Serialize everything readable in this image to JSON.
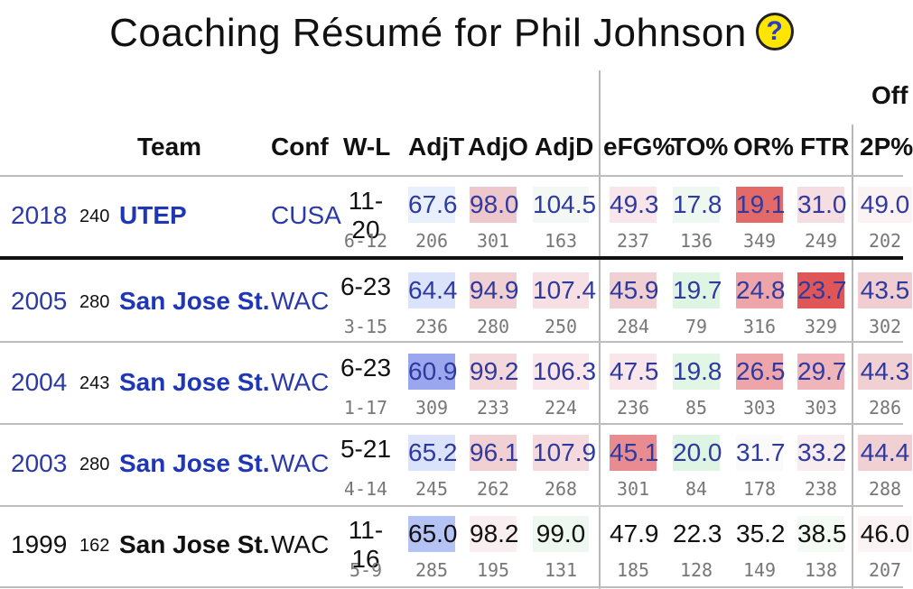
{
  "page": {
    "title": "Coaching Résumé for Phil Johnson",
    "help_icon": "?"
  },
  "group_header": "Off",
  "columns": {
    "team": "Team",
    "conf": "Conf",
    "wl": "W-L",
    "adjt": "AdjT",
    "adjo": "AdjO",
    "adjd": "AdjD",
    "efg": "eFG%",
    "to": "TO%",
    "or": "OR%",
    "ftr": "FTR",
    "two": "2P%"
  },
  "rows": [
    {
      "year": "2018",
      "rank": "240",
      "team": "UTEP",
      "conf": "CUSA",
      "wl": "11-20",
      "conf_wl": "6-12",
      "stats": [
        {
          "v": "67.6",
          "r": "206",
          "bg": "#e9f0fd"
        },
        {
          "v": "98.0",
          "r": "301",
          "bg": "#eec7cc"
        },
        {
          "v": "104.5",
          "r": "163",
          "bg": "#f3f8f5"
        },
        {
          "v": "49.3",
          "r": "237",
          "bg": "#f8e6ea"
        },
        {
          "v": "17.8",
          "r": "136",
          "bg": "#eef8f0"
        },
        {
          "v": "19.1",
          "r": "349",
          "bg": "#e46a6a"
        },
        {
          "v": "31.0",
          "r": "249",
          "bg": "#f6dde1"
        },
        {
          "v": "49.0",
          "r": "202",
          "bg": "#fbf2f3"
        }
      ]
    },
    {
      "year": "2005",
      "rank": "280",
      "team": "San Jose St.",
      "conf": "WAC",
      "wl": "6-23",
      "conf_wl": "3-15",
      "stats": [
        {
          "v": "64.4",
          "r": "236",
          "bg": "#dbe3fb"
        },
        {
          "v": "94.9",
          "r": "280",
          "bg": "#f1d0d4"
        },
        {
          "v": "107.4",
          "r": "250",
          "bg": "#f6e0e3"
        },
        {
          "v": "45.9",
          "r": "284",
          "bg": "#f1d0d4"
        },
        {
          "v": "19.7",
          "r": "79",
          "bg": "#dff5e4"
        },
        {
          "v": "24.8",
          "r": "316",
          "bg": "#eda5aa"
        },
        {
          "v": "23.7",
          "r": "329",
          "bg": "#e05656"
        },
        {
          "v": "43.5",
          "r": "302",
          "bg": "#f0cdd1"
        }
      ]
    },
    {
      "year": "2004",
      "rank": "243",
      "team": "San Jose St.",
      "conf": "WAC",
      "wl": "6-23",
      "conf_wl": "1-17",
      "stats": [
        {
          "v": "60.9",
          "r": "309",
          "bg": "#9aa7ee"
        },
        {
          "v": "99.2",
          "r": "233",
          "bg": "#f3d7db"
        },
        {
          "v": "106.3",
          "r": "224",
          "bg": "#f8e6ea"
        },
        {
          "v": "47.5",
          "r": "236",
          "bg": "#f8e6ea"
        },
        {
          "v": "19.8",
          "r": "85",
          "bg": "#e1f6e5"
        },
        {
          "v": "26.5",
          "r": "303",
          "bg": "#eda5aa"
        },
        {
          "v": "29.7",
          "r": "303",
          "bg": "#efb5ba"
        },
        {
          "v": "44.3",
          "r": "286",
          "bg": "#f1d0d4"
        }
      ]
    },
    {
      "year": "2003",
      "rank": "280",
      "team": "San Jose St.",
      "conf": "WAC",
      "wl": "5-21",
      "conf_wl": "4-14",
      "stats": [
        {
          "v": "65.2",
          "r": "245",
          "bg": "#dbe3fb"
        },
        {
          "v": "96.1",
          "r": "262",
          "bg": "#f1d0d4"
        },
        {
          "v": "107.9",
          "r": "268",
          "bg": "#f4d9dd"
        },
        {
          "v": "45.1",
          "r": "301",
          "bg": "#e98c92"
        },
        {
          "v": "20.0",
          "r": "84",
          "bg": "#dff5e4"
        },
        {
          "v": "31.7",
          "r": "178",
          "bg": "#fafafa"
        },
        {
          "v": "33.2",
          "r": "238",
          "bg": "#f9ecee"
        },
        {
          "v": "44.4",
          "r": "288",
          "bg": "#f1d0d4"
        }
      ]
    },
    {
      "year": "1999",
      "rank": "162",
      "team": "San Jose St.",
      "conf": "WAC",
      "wl": "11-16",
      "conf_wl": "5-9",
      "stats": [
        {
          "v": "65.0",
          "r": "285",
          "bg": "#b5c2f4"
        },
        {
          "v": "98.2",
          "r": "195",
          "bg": "#f9eef0"
        },
        {
          "v": "99.0",
          "r": "131",
          "bg": "#eef8f0"
        },
        {
          "v": "47.9",
          "r": "185",
          "bg": "#ffffff"
        },
        {
          "v": "22.3",
          "r": "128",
          "bg": "#ffffff"
        },
        {
          "v": "35.2",
          "r": "149",
          "bg": "#ffffff"
        },
        {
          "v": "38.5",
          "r": "138",
          "bg": "#f3fbf4"
        },
        {
          "v": "46.0",
          "r": "207",
          "bg": "#fbf3f4"
        }
      ]
    }
  ]
}
